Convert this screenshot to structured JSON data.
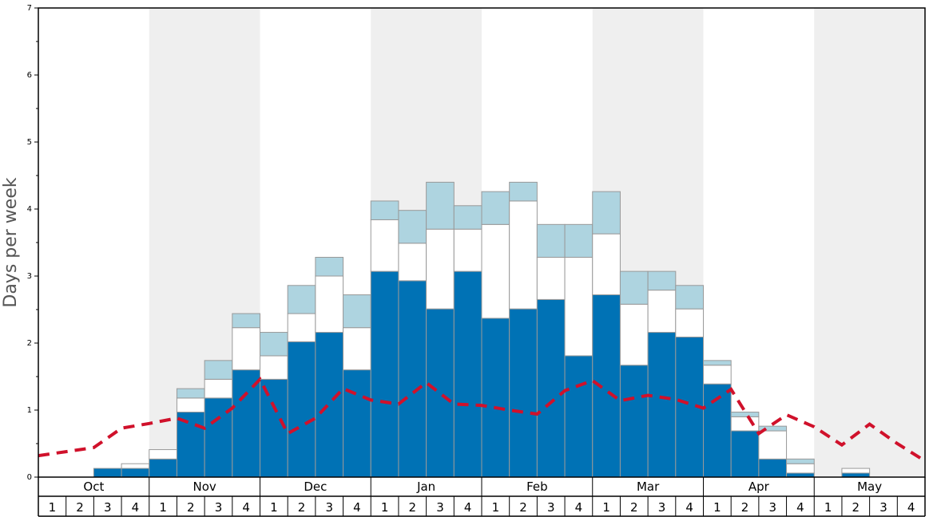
{
  "chart_data": {
    "type": "bar",
    "ylabel": "Days per week",
    "ylim": [
      0,
      7
    ],
    "yticks": [
      "0",
      "1",
      "2",
      "3",
      "4",
      "5",
      "6",
      "7"
    ],
    "months": [
      "Oct",
      "Nov",
      "Dec",
      "Jan",
      "Feb",
      "Mar",
      "Apr",
      "May"
    ],
    "week_labels": [
      "1",
      "2",
      "3",
      "4"
    ],
    "stack_colors": [
      "#0072b5",
      "#ffffff",
      "#aed4e0"
    ],
    "line_color": "#d0112b",
    "shaded_band_color": "#efefef",
    "series": [
      {
        "values": [
          0,
          0,
          0.13,
          0.13,
          0.27,
          0.97,
          1.18,
          1.6,
          1.46,
          2.02,
          2.16,
          1.6,
          3.07,
          2.93,
          2.51,
          3.07,
          2.37,
          2.51,
          2.65,
          1.81,
          2.72,
          1.67,
          2.16,
          2.09,
          1.39,
          0.69,
          0.27,
          0.06,
          0,
          0.06,
          0,
          0
        ]
      },
      {
        "values": [
          0,
          0,
          0,
          0.07,
          0.14,
          0.21,
          0.28,
          0.63,
          0.35,
          0.42,
          0.84,
          0.63,
          0.77,
          0.56,
          1.19,
          0.63,
          1.4,
          1.61,
          0.63,
          1.47,
          0.91,
          0.91,
          0.63,
          0.42,
          0.28,
          0.21,
          0.42,
          0.14,
          0,
          0.07,
          0,
          0
        ]
      },
      {
        "values": [
          0,
          0,
          0,
          0,
          0,
          0.14,
          0.28,
          0.21,
          0.35,
          0.42,
          0.28,
          0.49,
          0.28,
          0.49,
          0.7,
          0.35,
          0.49,
          0.28,
          0.49,
          0.49,
          0.63,
          0.49,
          0.28,
          0.35,
          0.07,
          0.07,
          0.07,
          0.07,
          0,
          0,
          0,
          0
        ]
      },
      {
        "values": [
          0.32,
          0.38,
          0.44,
          0.73,
          0.8,
          0.88,
          0.73,
          1.03,
          1.46,
          0.65,
          0.88,
          1.32,
          1.15,
          1.09,
          1.41,
          1.09,
          1.07,
          1.0,
          0.94,
          1.29,
          1.44,
          1.14,
          1.22,
          1.16,
          1.03,
          1.31,
          0.65,
          0.93,
          0.75,
          0.48,
          0.79,
          0.5,
          0.24
        ]
      }
    ]
  }
}
